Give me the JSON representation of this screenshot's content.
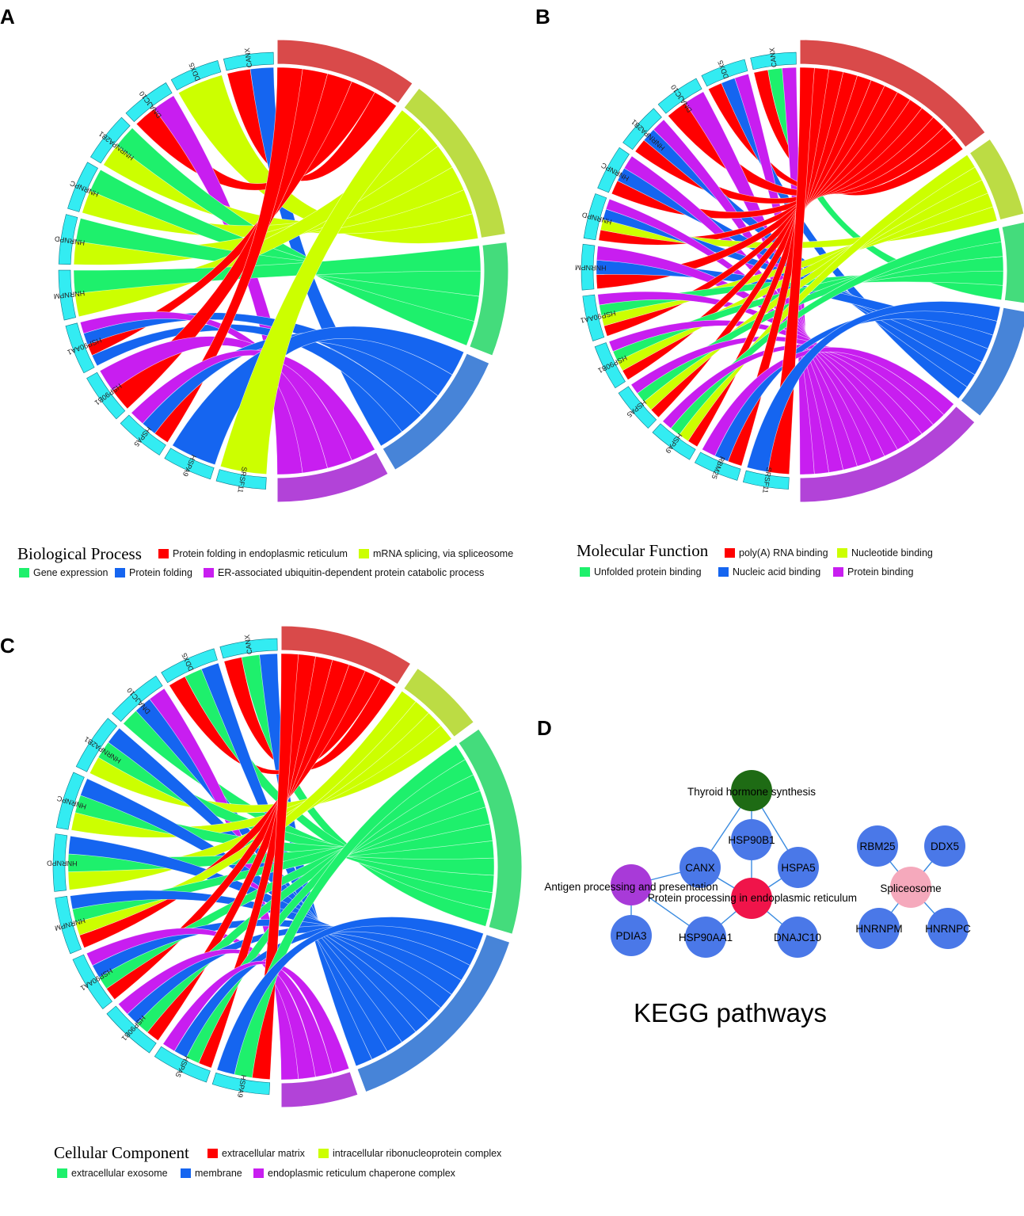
{
  "colors": {
    "gene_segment": "#33ecf2",
    "term_red": "#d94a4a",
    "term_olive": "#bcdc44",
    "term_green": "#44dc7c",
    "term_blue": "#4784d8",
    "term_purple": "#b243d8",
    "ribbon_red": "#ff0000",
    "ribbon_yellow": "#ccff00",
    "ribbon_green": "#1ef06c",
    "ribbon_blue": "#1565f0",
    "ribbon_purple": "#c81ef0",
    "node_blue": "#4a78e8",
    "node_green": "#1e6b14",
    "node_purple": "#a83ad8",
    "node_red": "#f0144a",
    "node_pink": "#f5a9bc",
    "edge": "#3a8be0"
  },
  "chart_data": [
    {
      "type": "chord",
      "panel": "A",
      "legend_title": "Biological Process",
      "genes": [
        "CANX",
        "DDX5",
        "DNAJC10",
        "HNRNPA2B1",
        "HNRNPC",
        "HNRNPD",
        "HNRNPM",
        "HSP90AA1",
        "HSP90B1",
        "HSPA5",
        "HSPA9",
        "SRSF11"
      ],
      "terms": [
        {
          "name": "Protein folding in endoplasmic reticulum",
          "color_key": "red"
        },
        {
          "name": "mRNA splicing, via spliceosome",
          "color_key": "yellow"
        },
        {
          "name": "Gene expression",
          "color_key": "green"
        },
        {
          "name": "Protein folding",
          "color_key": "blue"
        },
        {
          "name": "ER-associated ubiquitin-dependent protein catabolic process",
          "color_key": "purple"
        }
      ],
      "links": [
        [
          "CANX",
          "red"
        ],
        [
          "CANX",
          "blue"
        ],
        [
          "DDX5",
          "yellow"
        ],
        [
          "DNAJC10",
          "red"
        ],
        [
          "DNAJC10",
          "purple"
        ],
        [
          "HNRNPA2B1",
          "yellow"
        ],
        [
          "HNRNPA2B1",
          "green"
        ],
        [
          "HNRNPC",
          "yellow"
        ],
        [
          "HNRNPC",
          "green"
        ],
        [
          "HNRNPD",
          "yellow"
        ],
        [
          "HNRNPD",
          "green"
        ],
        [
          "HNRNPM",
          "yellow"
        ],
        [
          "HNRNPM",
          "green"
        ],
        [
          "HSP90AA1",
          "blue"
        ],
        [
          "HSP90AA1",
          "red"
        ],
        [
          "HSP90AA1",
          "blue"
        ],
        [
          "HSP90AA1",
          "purple"
        ],
        [
          "HSP90B1",
          "red"
        ],
        [
          "HSP90B1",
          "purple"
        ],
        [
          "HSPA5",
          "red"
        ],
        [
          "HSPA5",
          "blue"
        ],
        [
          "HSPA5",
          "purple"
        ],
        [
          "HSPA9",
          "blue"
        ],
        [
          "SRSF11",
          "yellow"
        ]
      ]
    },
    {
      "type": "chord",
      "panel": "B",
      "legend_title": "Molecular Function",
      "genes": [
        "CANX",
        "DDX5",
        "DNAJC10",
        "HNRNPA2B1",
        "HNRNPC",
        "HNRNPD",
        "HNRNPM",
        "HSP90AA1",
        "HSP90B1",
        "HSPA5",
        "HSPA9",
        "RBM25",
        "SRSF11"
      ],
      "terms": [
        {
          "name": "poly(A) RNA binding",
          "color_key": "red"
        },
        {
          "name": "Nucleotide binding",
          "color_key": "yellow"
        },
        {
          "name": "Unfolded protein binding",
          "color_key": "green"
        },
        {
          "name": "Nucleic acid binding",
          "color_key": "blue"
        },
        {
          "name": "Protein binding",
          "color_key": "purple"
        }
      ],
      "links": [
        [
          "CANX",
          "red"
        ],
        [
          "CANX",
          "green"
        ],
        [
          "CANX",
          "purple"
        ],
        [
          "DDX5",
          "red"
        ],
        [
          "DDX5",
          "blue"
        ],
        [
          "DDX5",
          "purple"
        ],
        [
          "DNAJC10",
          "red"
        ],
        [
          "DNAJC10",
          "purple"
        ],
        [
          "HNRNPA2B1",
          "red"
        ],
        [
          "HNRNPA2B1",
          "blue"
        ],
        [
          "HNRNPA2B1",
          "purple"
        ],
        [
          "HNRNPC",
          "red"
        ],
        [
          "HNRNPC",
          "blue"
        ],
        [
          "HNRNPC",
          "purple"
        ],
        [
          "HNRNPD",
          "red"
        ],
        [
          "HNRNPD",
          "yellow"
        ],
        [
          "HNRNPD",
          "blue"
        ],
        [
          "HNRNPD",
          "purple"
        ],
        [
          "HNRNPM",
          "red"
        ],
        [
          "HNRNPM",
          "blue"
        ],
        [
          "HNRNPM",
          "purple"
        ],
        [
          "HSP90AA1",
          "red"
        ],
        [
          "HSP90AA1",
          "yellow"
        ],
        [
          "HSP90AA1",
          "green"
        ],
        [
          "HSP90AA1",
          "purple"
        ],
        [
          "HSP90B1",
          "red"
        ],
        [
          "HSP90B1",
          "yellow"
        ],
        [
          "HSP90B1",
          "green"
        ],
        [
          "HSP90B1",
          "purple"
        ],
        [
          "HSPA5",
          "red"
        ],
        [
          "HSPA5",
          "yellow"
        ],
        [
          "HSPA5",
          "green"
        ],
        [
          "HSPA5",
          "purple"
        ],
        [
          "HSPA9",
          "red"
        ],
        [
          "HSPA9",
          "yellow"
        ],
        [
          "HSPA9",
          "green"
        ],
        [
          "HSPA9",
          "purple"
        ],
        [
          "RBM25",
          "red"
        ],
        [
          "RBM25",
          "blue"
        ],
        [
          "RBM25",
          "purple"
        ],
        [
          "SRSF11",
          "red"
        ],
        [
          "SRSF11",
          "blue"
        ]
      ]
    },
    {
      "type": "chord",
      "panel": "C",
      "legend_title": "Cellular Component",
      "genes": [
        "CANX",
        "DDX5",
        "DNAJC10",
        "HNRNPA2B1",
        "HNRNPC",
        "HNRNPD",
        "HNRNPM",
        "HSP90AA1",
        "HSP90B1",
        "HSPA5",
        "HSPA9"
      ],
      "terms": [
        {
          "name": "extracellular matrix",
          "color_key": "red"
        },
        {
          "name": "intracellular ribonucleoprotein complex",
          "color_key": "yellow"
        },
        {
          "name": "extracellular exosome",
          "color_key": "green"
        },
        {
          "name": "membrane",
          "color_key": "blue"
        },
        {
          "name": "endoplasmic reticulum chaperone complex",
          "color_key": "purple"
        }
      ],
      "links": [
        [
          "CANX",
          "red"
        ],
        [
          "CANX",
          "green"
        ],
        [
          "CANX",
          "blue"
        ],
        [
          "DDX5",
          "red"
        ],
        [
          "DDX5",
          "green"
        ],
        [
          "DDX5",
          "blue"
        ],
        [
          "DNAJC10",
          "green"
        ],
        [
          "DNAJC10",
          "blue"
        ],
        [
          "DNAJC10",
          "purple"
        ],
        [
          "HNRNPA2B1",
          "yellow"
        ],
        [
          "HNRNPA2B1",
          "green"
        ],
        [
          "HNRNPA2B1",
          "blue"
        ],
        [
          "HNRNPC",
          "yellow"
        ],
        [
          "HNRNPC",
          "green"
        ],
        [
          "HNRNPC",
          "blue"
        ],
        [
          "HNRNPD",
          "yellow"
        ],
        [
          "HNRNPD",
          "green"
        ],
        [
          "HNRNPD",
          "blue"
        ],
        [
          "HNRNPM",
          "red"
        ],
        [
          "HNRNPM",
          "yellow"
        ],
        [
          "HNRNPM",
          "green"
        ],
        [
          "HNRNPM",
          "blue"
        ],
        [
          "HSP90AA1",
          "red"
        ],
        [
          "HSP90AA1",
          "green"
        ],
        [
          "HSP90AA1",
          "blue"
        ],
        [
          "HSP90AA1",
          "purple"
        ],
        [
          "HSP90B1",
          "red"
        ],
        [
          "HSP90B1",
          "green"
        ],
        [
          "HSP90B1",
          "blue"
        ],
        [
          "HSP90B1",
          "purple"
        ],
        [
          "HSPA5",
          "red"
        ],
        [
          "HSPA5",
          "green"
        ],
        [
          "HSPA5",
          "blue"
        ],
        [
          "HSPA5",
          "purple"
        ],
        [
          "HSPA9",
          "red"
        ],
        [
          "HSPA9",
          "green"
        ],
        [
          "HSPA9",
          "blue"
        ]
      ]
    }
  ],
  "kegg": {
    "panel": "D",
    "title": "KEGG pathways",
    "nodes": [
      {
        "id": "thyroid",
        "label": "Thyroid hormone synthesis",
        "color_key": "node_green"
      },
      {
        "id": "antigen",
        "label": "Antigen processing and presentation",
        "color_key": "node_purple"
      },
      {
        "id": "protein",
        "label": "Protein processing in endoplasmic reticulum",
        "color_key": "node_red"
      },
      {
        "id": "spliceosome",
        "label": "Spliceosome",
        "color_key": "node_pink"
      },
      {
        "id": "HSP90B1",
        "label": "HSP90B1",
        "color_key": "node_blue"
      },
      {
        "id": "CANX",
        "label": "CANX",
        "color_key": "node_blue"
      },
      {
        "id": "HSPA5",
        "label": "HSPA5",
        "color_key": "node_blue"
      },
      {
        "id": "PDIA3",
        "label": "PDIA3",
        "color_key": "node_blue"
      },
      {
        "id": "HSP90AA1",
        "label": "HSP90AA1",
        "color_key": "node_blue"
      },
      {
        "id": "DNAJC10",
        "label": "DNAJC10",
        "color_key": "node_blue"
      },
      {
        "id": "RBM25",
        "label": "RBM25",
        "color_key": "node_blue"
      },
      {
        "id": "DDX5",
        "label": "DDX5",
        "color_key": "node_blue"
      },
      {
        "id": "HNRNPM",
        "label": "HNRNPM",
        "color_key": "node_blue"
      },
      {
        "id": "HNRNPC",
        "label": "HNRNPC",
        "color_key": "node_blue"
      }
    ],
    "edges": [
      [
        "thyroid",
        "HSP90B1"
      ],
      [
        "thyroid",
        "CANX"
      ],
      [
        "thyroid",
        "HSPA5"
      ],
      [
        "HSP90B1",
        "protein"
      ],
      [
        "CANX",
        "protein"
      ],
      [
        "HSPA5",
        "protein"
      ],
      [
        "HSP90AA1",
        "protein"
      ],
      [
        "DNAJC10",
        "protein"
      ],
      [
        "CANX",
        "antigen"
      ],
      [
        "PDIA3",
        "antigen"
      ],
      [
        "HSP90AA1",
        "antigen"
      ],
      [
        "RBM25",
        "spliceosome"
      ],
      [
        "DDX5",
        "spliceosome"
      ],
      [
        "HNRNPM",
        "spliceosome"
      ],
      [
        "HNRNPC",
        "spliceosome"
      ]
    ]
  }
}
